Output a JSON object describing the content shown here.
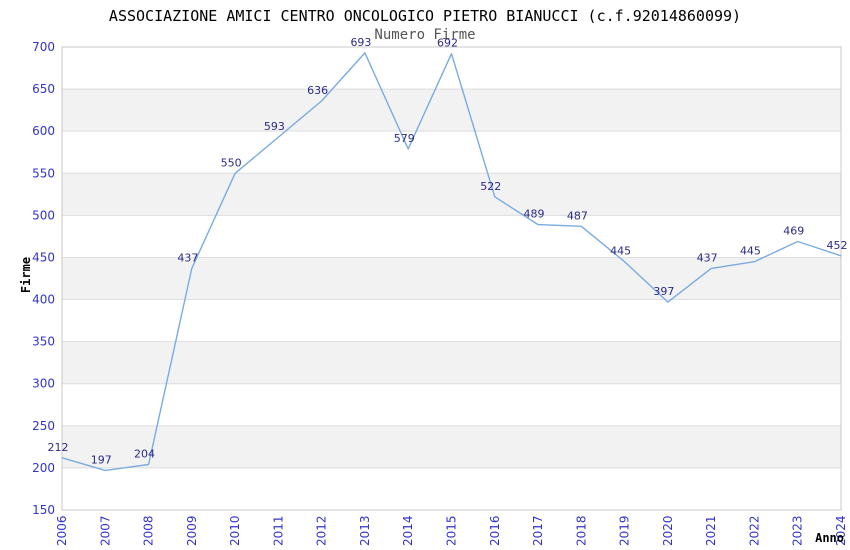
{
  "chart_data": {
    "type": "line",
    "title": "ASSOCIAZIONE AMICI CENTRO ONCOLOGICO PIETRO BIANUCCI (c.f.92014860099)",
    "subtitle": "Numero Firme",
    "xlabel": "Anno",
    "ylabel": "Firme",
    "x": [
      "2006",
      "2007",
      "2008",
      "2009",
      "2010",
      "2011",
      "2012",
      "2013",
      "2014",
      "2015",
      "2016",
      "2017",
      "2018",
      "2019",
      "2020",
      "2021",
      "2022",
      "2023",
      "2024"
    ],
    "values": [
      212,
      197,
      204,
      437,
      550,
      593,
      636,
      693,
      579,
      692,
      522,
      489,
      487,
      445,
      397,
      437,
      445,
      469,
      452
    ],
    "ylim": [
      150,
      700
    ],
    "ytick_step": 50,
    "grid": "horizontal-lines-with-alternating-bands",
    "legend": "none",
    "data_labels": "shown-above-points"
  },
  "colors": {
    "line": "#7aabe0",
    "axis_tick_label": "#3333cc",
    "data_label": "#2b2b85",
    "band": "#f2f2f2",
    "gridline": "#dddddd",
    "plot_border": "#c8c8c8",
    "title": "#000000",
    "subtitle": "#555555",
    "background": "#ffffff"
  }
}
